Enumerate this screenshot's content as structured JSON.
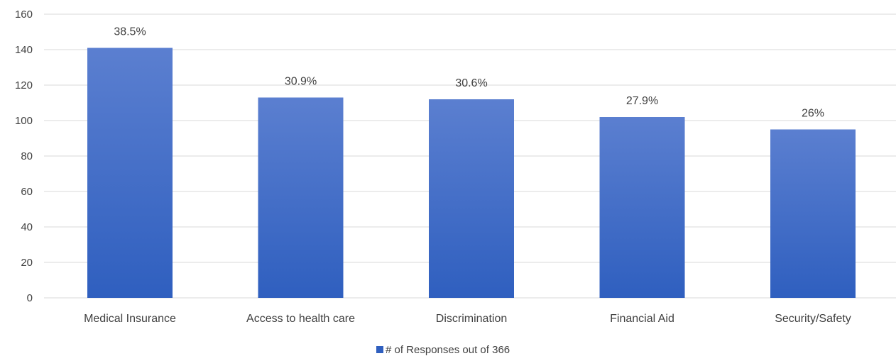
{
  "chart_data": {
    "type": "bar",
    "categories": [
      "Medical Insurance",
      "Access to health care",
      "Discrimination",
      "Financial Aid",
      "Security/Safety"
    ],
    "series": [
      {
        "name": "# of Responses out of 366",
        "values": [
          141,
          113,
          112,
          102,
          95
        ],
        "data_labels": [
          "38.5%",
          "30.9%",
          "30.6%",
          "27.9%",
          "26%"
        ]
      }
    ],
    "title": "",
    "xlabel": "",
    "ylabel": "",
    "ylim": [
      0,
      160
    ],
    "yticks": [
      0,
      20,
      40,
      60,
      80,
      100,
      120,
      140,
      160
    ],
    "grid": true,
    "legend_position": "bottom",
    "colors": {
      "bar_top": "#5b7fd0",
      "bar_bottom": "#2f5fbf",
      "grid": "#d9d9d9",
      "text": "#404040"
    }
  }
}
